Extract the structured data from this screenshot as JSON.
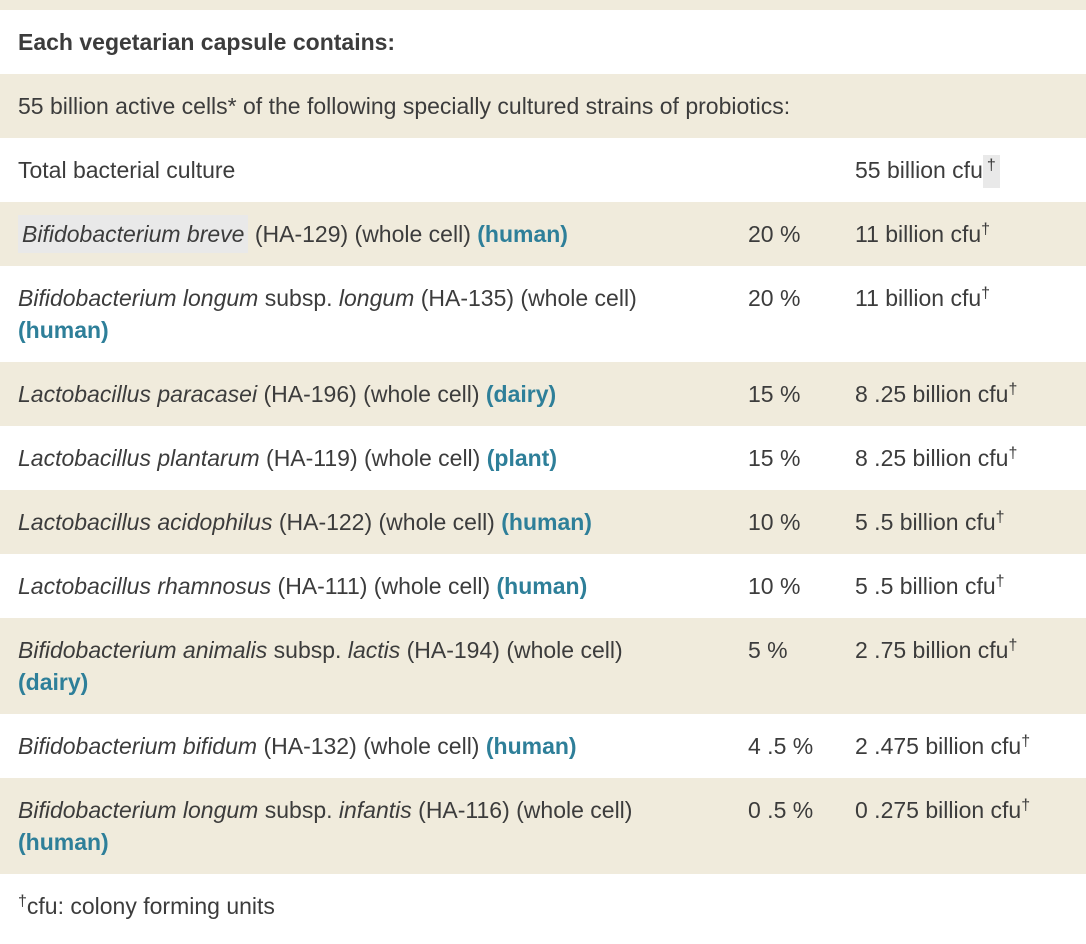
{
  "colors": {
    "row_shade": "#f0ebdc",
    "accent_teal": "#2e7f99",
    "text": "#3c3c3c",
    "selection_highlight": "#e9e9e9"
  },
  "table": {
    "rows": [
      {
        "shade": false,
        "full": true,
        "name": [
          {
            "t": "Each vegetarian capsule contains:",
            "s": "b"
          }
        ]
      },
      {
        "shade": true,
        "full": true,
        "name": [
          {
            "t": "55 billion active cells* of the following specially cultured strains of probiotics:"
          }
        ]
      },
      {
        "shade": false,
        "name": [
          {
            "t": "Total bacterial culture"
          }
        ],
        "percent": [],
        "amount": [
          {
            "t": "55 billion cfu"
          },
          {
            "t": "†",
            "s": "sup hl"
          }
        ]
      },
      {
        "shade": true,
        "name": [
          {
            "t": "Bifidobacterium breve",
            "s": "i hl"
          },
          {
            "t": " (HA-129) (whole cell) "
          },
          {
            "t": "(human)",
            "s": "src"
          }
        ],
        "percent": [
          {
            "t": "20 %"
          }
        ],
        "amount": [
          {
            "t": "11 billion cfu"
          },
          {
            "t": "†",
            "s": "sup"
          }
        ]
      },
      {
        "shade": false,
        "name": [
          {
            "t": "Bifidobacterium longum",
            "s": "i"
          },
          {
            "t": " subsp. "
          },
          {
            "t": "longum",
            "s": "i"
          },
          {
            "t": " (HA-135) (whole cell)"
          },
          {
            "br": true
          },
          {
            "t": "(human)",
            "s": "src"
          }
        ],
        "percent": [
          {
            "t": "20 %"
          }
        ],
        "amount": [
          {
            "t": "11 billion cfu"
          },
          {
            "t": "†",
            "s": "sup"
          }
        ]
      },
      {
        "shade": true,
        "name": [
          {
            "t": "Lactobacillus paracasei",
            "s": "i"
          },
          {
            "t": " (HA-196) (whole cell) "
          },
          {
            "t": "(dairy)",
            "s": "src"
          }
        ],
        "percent": [
          {
            "t": "15 %"
          }
        ],
        "amount": [
          {
            "t": "8 .25 billion cfu"
          },
          {
            "t": "†",
            "s": "sup"
          }
        ]
      },
      {
        "shade": false,
        "name": [
          {
            "t": "Lactobacillus plantarum",
            "s": "i"
          },
          {
            "t": " (HA-119) (whole cell) "
          },
          {
            "t": "(plant)",
            "s": "src"
          }
        ],
        "percent": [
          {
            "t": "15 %"
          }
        ],
        "amount": [
          {
            "t": "8 .25 billion cfu"
          },
          {
            "t": "†",
            "s": "sup"
          }
        ]
      },
      {
        "shade": true,
        "name": [
          {
            "t": "Lactobacillus acidophilus",
            "s": "i"
          },
          {
            "t": " (HA-122) (whole cell) "
          },
          {
            "t": "(human)",
            "s": "src"
          }
        ],
        "percent": [
          {
            "t": "10 %"
          }
        ],
        "amount": [
          {
            "t": "5 .5 billion cfu"
          },
          {
            "t": "†",
            "s": "sup"
          }
        ]
      },
      {
        "shade": false,
        "name": [
          {
            "t": "Lactobacillus rhamnosus",
            "s": "i"
          },
          {
            "t": " (HA-111) (whole cell) "
          },
          {
            "t": "(human)",
            "s": "src"
          }
        ],
        "percent": [
          {
            "t": "10 %"
          }
        ],
        "amount": [
          {
            "t": "5 .5 billion cfu"
          },
          {
            "t": "†",
            "s": "sup"
          }
        ]
      },
      {
        "shade": true,
        "name": [
          {
            "t": "Bifidobacterium animalis",
            "s": "i"
          },
          {
            "t": " subsp. "
          },
          {
            "t": "lactis",
            "s": "i"
          },
          {
            "t": " (HA-194) (whole cell)"
          },
          {
            "br": true
          },
          {
            "t": "(dairy)",
            "s": "src"
          }
        ],
        "percent": [
          {
            "t": "5 %"
          }
        ],
        "amount": [
          {
            "t": "2 .75 billion cfu"
          },
          {
            "t": "†",
            "s": "sup"
          }
        ]
      },
      {
        "shade": false,
        "name": [
          {
            "t": "Bifidobacterium bifidum",
            "s": "i"
          },
          {
            "t": " (HA-132) (whole cell) "
          },
          {
            "t": "(human)",
            "s": "src"
          }
        ],
        "percent": [
          {
            "t": "4 .5 %"
          }
        ],
        "amount": [
          {
            "t": "2 .475 billion cfu"
          },
          {
            "t": "†",
            "s": "sup"
          }
        ]
      },
      {
        "shade": true,
        "name": [
          {
            "t": "Bifidobacterium longum",
            "s": "i"
          },
          {
            "t": " subsp. "
          },
          {
            "t": "infantis",
            "s": "i"
          },
          {
            "t": " (HA-116) (whole cell)"
          },
          {
            "br": true
          },
          {
            "t": "(human)",
            "s": "src"
          }
        ],
        "percent": [
          {
            "t": "0 .5 %"
          }
        ],
        "amount": [
          {
            "t": "0 .275 billion cfu"
          },
          {
            "t": "†",
            "s": "sup"
          }
        ]
      }
    ]
  },
  "footnote": [
    {
      "t": "†",
      "s": "sup"
    },
    {
      "t": "cfu: colony forming units"
    }
  ]
}
